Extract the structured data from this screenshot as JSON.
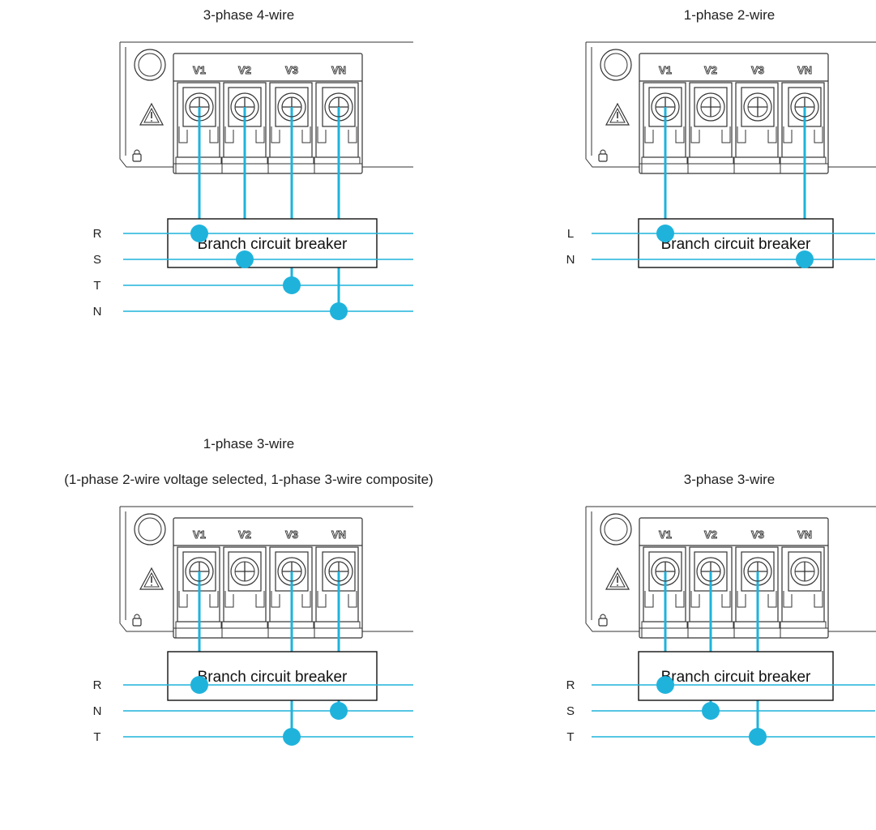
{
  "colors": {
    "wire": "#1fb3dc",
    "outline": "#333333",
    "text": "#222222"
  },
  "terminal_labels": [
    "V1",
    "V2",
    "V3",
    "VN"
  ],
  "breaker_label": "Branch circuit breaker",
  "warning_icon": "warning-triangle-icon",
  "lock_icon": "padlock-icon",
  "diagrams": [
    {
      "id": "3p4w",
      "title": "3-phase 4-wire",
      "subtitle": "",
      "wired_terminals": [
        0,
        1,
        2,
        3
      ],
      "lines": [
        {
          "label": "R",
          "terminal": 0
        },
        {
          "label": "S",
          "terminal": 1
        },
        {
          "label": "T",
          "terminal": 2
        },
        {
          "label": "N",
          "terminal": 3
        }
      ]
    },
    {
      "id": "1p2w",
      "title": "1-phase 2-wire",
      "subtitle": "",
      "wired_terminals": [
        0,
        3
      ],
      "lines": [
        {
          "label": "L",
          "terminal": 0
        },
        {
          "label": "N",
          "terminal": 3
        }
      ]
    },
    {
      "id": "1p3w",
      "title": "1-phase 3-wire",
      "subtitle": "(1-phase 2-wire voltage selected, 1-phase 3-wire composite)",
      "wired_terminals": [
        0,
        2,
        3
      ],
      "lines": [
        {
          "label": "R",
          "terminal": 0
        },
        {
          "label": "N",
          "terminal": 3
        },
        {
          "label": "T",
          "terminal": 2
        }
      ]
    },
    {
      "id": "3p3w",
      "title": "3-phase 3-wire",
      "subtitle": "",
      "wired_terminals": [
        0,
        1,
        2
      ],
      "lines": [
        {
          "label": "R",
          "terminal": 0
        },
        {
          "label": "S",
          "terminal": 1
        },
        {
          "label": "T",
          "terminal": 2
        }
      ]
    }
  ]
}
